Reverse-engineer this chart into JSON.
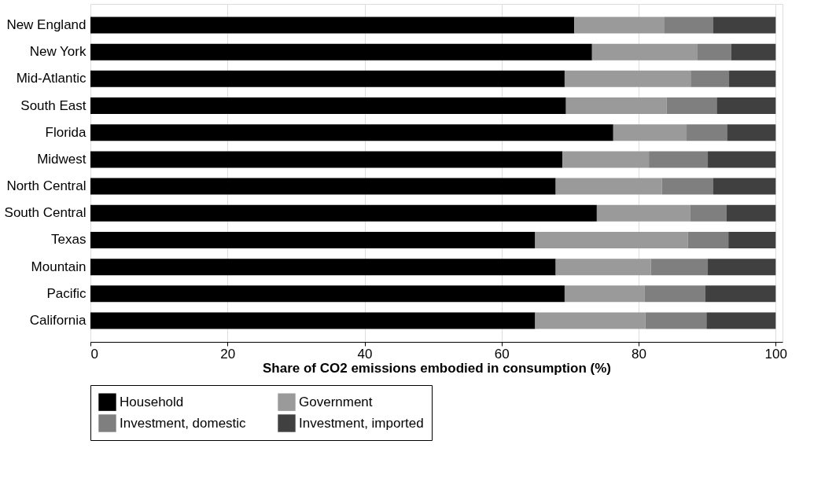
{
  "chart_data": {
    "type": "bar",
    "orientation": "horizontal",
    "stacked": true,
    "xlabel": "Share of CO2 emissions embodied in consumption (%)",
    "categories": [
      "New England",
      "New York",
      "Mid-Atlantic",
      "South East",
      "Florida",
      "Midwest",
      "North Central",
      "South Central",
      "Texas",
      "Mountain",
      "Pacific",
      "California"
    ],
    "series": [
      {
        "name": "Household",
        "color": "#000000",
        "values": [
          70.6,
          73.2,
          69.2,
          69.4,
          76.3,
          68.9,
          67.9,
          73.9,
          64.9,
          67.9,
          69.2,
          64.9
        ]
      },
      {
        "name": "Government",
        "color": "#9a9a9a",
        "values": [
          13.1,
          15.4,
          18.4,
          14.7,
          10.7,
          12.6,
          15.5,
          13.6,
          22.3,
          13.9,
          11.7,
          16.1
        ]
      },
      {
        "name": "Investment, domestic",
        "color": "#7f7f7f",
        "values": [
          7.2,
          4.9,
          5.6,
          7.3,
          5.9,
          8.6,
          7.5,
          5.3,
          5.9,
          8.3,
          8.8,
          8.9
        ]
      },
      {
        "name": "Investment, imported",
        "color": "#404040",
        "values": [
          9.1,
          6.5,
          6.8,
          8.6,
          7.1,
          9.9,
          9.1,
          7.2,
          6.9,
          9.9,
          10.3,
          10.1
        ]
      }
    ],
    "xlim": [
      0,
      101
    ],
    "xticks": [
      0,
      20,
      40,
      60,
      80,
      100
    ],
    "grid": "x",
    "legend": "bottom"
  }
}
